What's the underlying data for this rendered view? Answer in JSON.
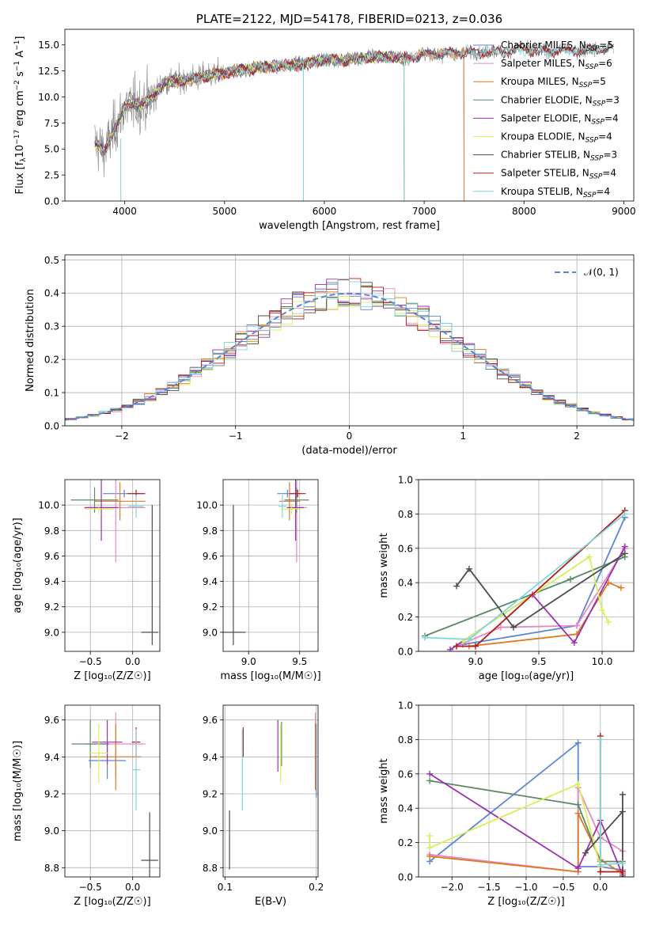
{
  "colors": {
    "Chabrier MILES": "#5b86d6",
    "Salpeter MILES": "#e58ac4",
    "Kroupa MILES": "#e07a22",
    "Chabrier ELODIE": "#5a8a66",
    "Salpeter ELODIE": "#9b30b0",
    "Kroupa ELODIE": "#d9ef58",
    "Chabrier STELIB": "#4d4d4d",
    "Salpeter STELIB": "#b51a1a",
    "Kroupa STELIB": "#7fd6dc",
    "normal": "#5b86d6",
    "grid": "#b0b0b0"
  },
  "chart_data": [
    {
      "id": "spectrum",
      "type": "line",
      "title": "PLATE=2122, MJD=54178, FIBERID=0213, z=0.036",
      "xlabel": "wavelength [Angstrom, rest frame]",
      "ylabel_main": "Flux [f",
      "ylabel_sub1": "λ",
      "ylabel_mid": "10",
      "ylabel_sup1": "−17",
      "ylabel_mid2": " erg cm",
      "ylabel_sup2": "−2",
      "ylabel_mid3": " s",
      "ylabel_sup3": "−1",
      "ylabel_mid4": " A",
      "ylabel_sup4": "−1",
      "ylabel_end": "]",
      "xlim": [
        3400,
        9100
      ],
      "ylim": [
        0,
        16.5
      ],
      "xticks": [
        4000,
        5000,
        6000,
        7000,
        8000,
        9000
      ],
      "yticks": [
        0.0,
        2.5,
        5.0,
        7.5,
        10.0,
        12.5,
        15.0
      ],
      "grid": false,
      "legend_position": "upper right",
      "legend": [
        {
          "name": "Chabrier MILES",
          "nssp": "5"
        },
        {
          "name": "Salpeter MILES",
          "nssp": "6"
        },
        {
          "name": "Kroupa MILES",
          "nssp": "5"
        },
        {
          "name": "Chabrier ELODIE",
          "nssp": "3"
        },
        {
          "name": "Salpeter ELODIE",
          "nssp": "4"
        },
        {
          "name": "Kroupa ELODIE",
          "nssp": "4"
        },
        {
          "name": "Chabrier STELIB",
          "nssp": "3"
        },
        {
          "name": "Salpeter STELIB",
          "nssp": "4"
        },
        {
          "name": "Kroupa STELIB",
          "nssp": "4"
        }
      ],
      "continuum": {
        "x": [
          3700,
          3800,
          3900,
          4000,
          4100,
          4200,
          4300,
          4400,
          4600,
          4800,
          5000,
          5200,
          5400,
          5600,
          5800,
          6000,
          6200,
          6400,
          6600,
          6800,
          7000,
          7200,
          7400,
          7600,
          7800,
          8000,
          8200,
          8400,
          8600,
          8800
        ],
        "y": [
          5.6,
          4.8,
          7.0,
          9.0,
          9.3,
          9.4,
          10.2,
          11.4,
          11.6,
          12.0,
          12.3,
          12.6,
          12.9,
          13.0,
          13.2,
          13.6,
          13.5,
          13.8,
          13.9,
          13.7,
          14.1,
          14.2,
          14.3,
          14.3,
          14.4,
          14.6,
          14.4,
          14.5,
          14.5,
          14.6
        ]
      },
      "model_ranges": {
        "Chabrier MILES": [
          3700,
          7400
        ],
        "Salpeter MILES": [
          3700,
          7400
        ],
        "Kroupa MILES": [
          3700,
          7400
        ],
        "Chabrier ELODIE": [
          3700,
          6800
        ],
        "Salpeter ELODIE": [
          3700,
          6800
        ],
        "Kroupa ELODIE": [
          3700,
          6800
        ],
        "Chabrier STELIB": [
          3700,
          8900
        ],
        "Salpeter STELIB": [
          3700,
          8900
        ],
        "Kroupa STELIB": [
          3700,
          8900
        ]
      }
    },
    {
      "id": "residuals",
      "type": "histogram",
      "xlabel": "(data-model)/error",
      "ylabel": "Normed distribution",
      "xlim": [
        -2.5,
        2.5
      ],
      "ylim": [
        0,
        0.515
      ],
      "xticks": [
        -2,
        -1,
        0,
        1,
        2
      ],
      "yticks": [
        0.0,
        0.1,
        0.2,
        0.3,
        0.4,
        0.5
      ],
      "grid": true,
      "legend_position": "upper right",
      "legend_label": "𝒩(0, 1)",
      "bins": {
        "start": -2.5,
        "width": 0.1,
        "count": 50
      }
    },
    {
      "id": "age-vs-Z",
      "type": "scatter",
      "xlabel": "Z [log₁₀(Z/Z☉)]",
      "ylabel": "age  [log₁₀(age/yr)]",
      "xlim": [
        -0.8,
        0.32
      ],
      "ylim": [
        8.85,
        10.2
      ],
      "xticks": [
        -0.5,
        0.0
      ],
      "yticks": [
        9.0,
        9.2,
        9.4,
        9.6,
        9.8,
        10.0
      ],
      "grid": true,
      "points": [
        {
          "model": "Chabrier MILES",
          "x": -0.1,
          "y": 10.09,
          "xerr": 0.25,
          "yerr": 0.03
        },
        {
          "model": "Salpeter MILES",
          "x": -0.2,
          "y": 9.98,
          "xerr": 0.35,
          "yerr": 0.43
        },
        {
          "model": "Kroupa MILES",
          "x": -0.15,
          "y": 10.03,
          "xerr": 0.3,
          "yerr": 0.15
        },
        {
          "model": "Chabrier ELODIE",
          "x": -0.45,
          "y": 10.04,
          "xerr": 0.28,
          "yerr": 0.1
        },
        {
          "model": "Salpeter ELODIE",
          "x": -0.37,
          "y": 9.98,
          "xerr": 0.2,
          "yerr": 0.26
        },
        {
          "model": "Kroupa ELODIE",
          "x": -0.4,
          "y": 9.97,
          "xerr": 0.18,
          "yerr": 0.04
        },
        {
          "model": "Chabrier STELIB",
          "x": 0.2,
          "y": 9.0,
          "xerr": 0.1,
          "yerr": 0.0
        },
        {
          "model": "Salpeter STELIB",
          "x": 0.04,
          "y": 10.09,
          "xerr": 0.1,
          "yerr": 0.03
        },
        {
          "model": "Kroupa STELIB",
          "x": 0.04,
          "y": 9.99,
          "xerr": 0.09,
          "yerr": 0.09
        }
      ]
    },
    {
      "id": "age-vs-mass",
      "type": "scatter",
      "xlabel": "mass [log₁₀(M/M☉)]",
      "ylabel": "",
      "xlim": [
        8.75,
        9.68
      ],
      "ylim": [
        8.85,
        10.2
      ],
      "xticks": [
        9.0,
        9.5
      ],
      "yticks": [
        9.0,
        9.2,
        9.4,
        9.6,
        9.8,
        10.0
      ],
      "grid": true,
      "points": [
        {
          "model": "Chabrier MILES",
          "x": 9.38,
          "y": 10.09,
          "xerr": 0.1,
          "yerr": 0.03
        },
        {
          "model": "Salpeter MILES",
          "x": 9.47,
          "y": 9.98,
          "xerr": 0.1,
          "yerr": 0.43
        },
        {
          "model": "Kroupa MILES",
          "x": 9.4,
          "y": 10.03,
          "xerr": 0.1,
          "yerr": 0.15
        },
        {
          "model": "Chabrier ELODIE",
          "x": 9.47,
          "y": 10.04,
          "xerr": 0.12,
          "yerr": 0.1
        },
        {
          "model": "Salpeter ELODIE",
          "x": 9.46,
          "y": 9.98,
          "xerr": 0.08,
          "yerr": 0.26
        },
        {
          "model": "Kroupa ELODIE",
          "x": 9.42,
          "y": 9.97,
          "xerr": 0.08,
          "yerr": 0.04
        },
        {
          "model": "Chabrier STELIB",
          "x": 8.85,
          "y": 9.0,
          "xerr": 0.12,
          "yerr": 0.0
        },
        {
          "model": "Salpeter STELIB",
          "x": 9.48,
          "y": 10.09,
          "xerr": 0.08,
          "yerr": 0.03
        },
        {
          "model": "Kroupa STELIB",
          "x": 9.33,
          "y": 9.99,
          "xerr": 0.04,
          "yerr": 0.09
        }
      ],
      "special": {
        "model": "Chabrier STELIB",
        "x_line": 8.85,
        "y_range": [
          8.9,
          10.0
        ]
      }
    },
    {
      "id": "mass-weight-vs-age",
      "type": "line",
      "xlabel": "age  [log₁₀(age/yr)]",
      "ylabel": "mass weight",
      "xlim": [
        8.55,
        10.25
      ],
      "ylim": [
        0,
        1.0
      ],
      "xticks": [
        9.0,
        9.5,
        10.0
      ],
      "yticks": [
        0.0,
        0.2,
        0.4,
        0.6,
        0.8,
        1.0
      ],
      "grid": true,
      "series": [
        {
          "model": "Chabrier MILES",
          "x": [
            8.9,
            9.8,
            10.18
          ],
          "y": [
            0.04,
            0.15,
            0.78
          ]
        },
        {
          "model": "Salpeter MILES",
          "x": [
            8.85,
            9.2,
            9.8,
            10.18
          ],
          "y": [
            0.03,
            0.14,
            0.15,
            0.6
          ]
        },
        {
          "model": "Kroupa MILES",
          "x": [
            8.95,
            9.8,
            10.05,
            10.15
          ],
          "y": [
            0.03,
            0.1,
            0.4,
            0.37
          ]
        },
        {
          "model": "Chabrier ELODIE",
          "x": [
            8.6,
            9.75,
            10.18
          ],
          "y": [
            0.09,
            0.42,
            0.55
          ]
        },
        {
          "model": "Salpeter ELODIE",
          "x": [
            8.8,
            9.45,
            9.78,
            10.18
          ],
          "y": [
            0.01,
            0.33,
            0.05,
            0.61
          ]
        },
        {
          "model": "Kroupa ELODIE",
          "x": [
            8.9,
            9.9,
            10.0,
            10.05
          ],
          "y": [
            0.06,
            0.55,
            0.24,
            0.17
          ]
        },
        {
          "model": "Chabrier STELIB",
          "x": [
            8.85,
            8.95,
            9.3,
            10.18
          ],
          "y": [
            0.38,
            0.48,
            0.14,
            0.57
          ]
        },
        {
          "model": "Salpeter STELIB",
          "x": [
            8.85,
            9.0,
            10.18
          ],
          "y": [
            0.03,
            0.03,
            0.82
          ]
        },
        {
          "model": "Kroupa STELIB",
          "x": [
            8.6,
            8.95,
            10.18
          ],
          "y": [
            0.08,
            0.07,
            0.8
          ]
        }
      ]
    },
    {
      "id": "mass-vs-Z",
      "type": "scatter",
      "xlabel": "Z [log₁₀(Z/Z☉)]",
      "ylabel": "mass [log₁₀(M/M☉)]",
      "xlim": [
        -0.8,
        0.32
      ],
      "ylim": [
        8.75,
        9.68
      ],
      "xticks": [
        -0.5,
        0.0
      ],
      "yticks": [
        8.8,
        9.0,
        9.2,
        9.4,
        9.6
      ],
      "grid": true,
      "points": [
        {
          "model": "Chabrier MILES",
          "x": -0.3,
          "y": 9.38,
          "xerr": 0.22,
          "yerr": 0.1
        },
        {
          "model": "Salpeter MILES",
          "x": -0.2,
          "y": 9.47,
          "xerr": 0.35,
          "yerr": 0.17
        },
        {
          "model": "Kroupa MILES",
          "x": -0.2,
          "y": 9.4,
          "xerr": 0.3,
          "yerr": 0.18
        },
        {
          "model": "Chabrier ELODIE",
          "x": -0.5,
          "y": 9.47,
          "xerr": 0.22,
          "yerr": 0.13
        },
        {
          "model": "Salpeter ELODIE",
          "x": -0.3,
          "y": 9.48,
          "xerr": 0.18,
          "yerr": 0.12
        },
        {
          "model": "Kroupa ELODIE",
          "x": -0.4,
          "y": 9.42,
          "xerr": 0.12,
          "yerr": 0.16
        },
        {
          "model": "Chabrier STELIB",
          "x": 0.2,
          "y": 8.84,
          "xerr": 0.1,
          "yerr": 0.26
        },
        {
          "model": "Salpeter STELIB",
          "x": 0.04,
          "y": 9.48,
          "xerr": 0.05,
          "yerr": 0.08
        },
        {
          "model": "Kroupa STELIB",
          "x": 0.04,
          "y": 9.33,
          "xerr": 0.05,
          "yerr": 0.22
        }
      ]
    },
    {
      "id": "mass-vs-ebv",
      "type": "scatter",
      "xlabel": "E(B-V)",
      "ylabel": "",
      "xlim": [
        0.098,
        0.202
      ],
      "ylim": [
        8.75,
        9.68
      ],
      "xticks": [
        0.1,
        0.2
      ],
      "yticks": [
        8.8,
        9.0,
        9.2,
        9.4,
        9.6
      ],
      "grid": true,
      "points": [
        {
          "model": "Chabrier MILES",
          "x": 0.2,
          "y": 9.38,
          "xerr": 0,
          "yerr": 0.2
        },
        {
          "model": "Salpeter MILES",
          "x": 0.199,
          "y": 9.47,
          "xerr": 0,
          "yerr": 0.17
        },
        {
          "model": "Kroupa MILES",
          "x": 0.199,
          "y": 9.4,
          "xerr": 0,
          "yerr": 0.18
        },
        {
          "model": "Chabrier ELODIE",
          "x": 0.162,
          "y": 9.47,
          "xerr": 0,
          "yerr": 0.12
        },
        {
          "model": "Salpeter ELODIE",
          "x": 0.158,
          "y": 9.46,
          "xerr": 0,
          "yerr": 0.14
        },
        {
          "model": "Kroupa ELODIE",
          "x": 0.161,
          "y": 9.42,
          "xerr": 0,
          "yerr": 0.16
        },
        {
          "model": "Chabrier STELIB",
          "x": 0.105,
          "y": 8.95,
          "xerr": 0,
          "yerr": 0.16
        },
        {
          "model": "Salpeter STELIB",
          "x": 0.12,
          "y": 9.48,
          "xerr": 0,
          "yerr": 0.08
        },
        {
          "model": "Kroupa STELIB",
          "x": 0.119,
          "y": 9.33,
          "xerr": 0,
          "yerr": 0.22
        }
      ]
    },
    {
      "id": "mass-weight-vs-Z",
      "type": "line",
      "xlabel": "Z [log₁₀(Z/Z☉)]",
      "ylabel": "mass weight",
      "xlim": [
        -2.45,
        0.45
      ],
      "ylim": [
        0,
        1.0
      ],
      "xticks": [
        -2.0,
        -1.5,
        -1.0,
        -0.5,
        0.0
      ],
      "yticks": [
        0.0,
        0.2,
        0.4,
        0.6,
        0.8,
        1.0
      ],
      "grid": true,
      "series": [
        {
          "model": "Chabrier MILES",
          "x": [
            -2.3,
            -0.3,
            -0.3,
            0.0,
            0.3
          ],
          "y": [
            0.09,
            0.78,
            0.06,
            0.06,
            0.04
          ]
        },
        {
          "model": "Salpeter MILES",
          "x": [
            -2.3,
            -0.3,
            -0.3,
            0.0,
            0.3
          ],
          "y": [
            0.13,
            0.03,
            0.52,
            0.23,
            0.15
          ]
        },
        {
          "model": "Kroupa MILES",
          "x": [
            -2.3,
            -0.3,
            -0.3,
            0.0,
            0.3
          ],
          "y": [
            0.12,
            0.03,
            0.37,
            0.1,
            0.02
          ]
        },
        {
          "model": "Chabrier ELODIE",
          "x": [
            -2.3,
            -0.3,
            0.0,
            0.3
          ],
          "y": [
            0.56,
            0.42,
            0.09,
            0.09
          ]
        },
        {
          "model": "Salpeter ELODIE",
          "x": [
            -2.3,
            -0.3,
            0.0,
            0.3
          ],
          "y": [
            0.6,
            0.05,
            0.33,
            0.01
          ]
        },
        {
          "model": "Kroupa ELODIE",
          "x": [
            -2.3,
            -2.3,
            -0.3,
            0.0
          ],
          "y": [
            0.24,
            0.17,
            0.54,
            0.06
          ]
        },
        {
          "model": "Chabrier STELIB",
          "x": [
            -0.2,
            0.3,
            0.3,
            0.3
          ],
          "y": [
            0.14,
            0.38,
            0.48,
            0.0
          ]
        },
        {
          "model": "Salpeter STELIB",
          "x": [
            0.0,
            0.0,
            0.3
          ],
          "y": [
            0.82,
            0.03,
            0.03
          ]
        },
        {
          "model": "Kroupa STELIB",
          "x": [
            0.0,
            0.0,
            0.3
          ],
          "y": [
            0.8,
            0.07,
            0.08
          ]
        }
      ]
    }
  ]
}
